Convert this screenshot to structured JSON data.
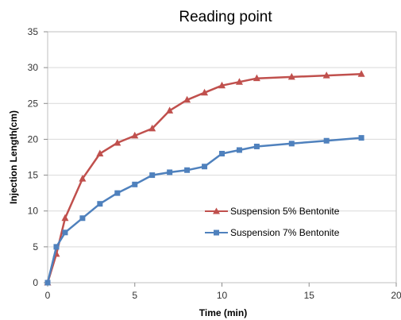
{
  "chart_data": {
    "type": "line",
    "title": "Reading point",
    "xlabel": "Time (min)",
    "ylabel": "Injection Length(cm)",
    "xlim": [
      0,
      20
    ],
    "ylim": [
      0,
      35
    ],
    "x_ticks": [
      0,
      5,
      10,
      15,
      20
    ],
    "y_ticks": [
      0,
      5,
      10,
      15,
      20,
      25,
      30,
      35
    ],
    "grid": true,
    "legend_position": "right-center",
    "series": [
      {
        "name": "Suspension 5% Bentonite",
        "color": "#c0504d",
        "marker": "triangle",
        "x": [
          0,
          0.5,
          1,
          2,
          3,
          4,
          5,
          6,
          7,
          8,
          9,
          10,
          11,
          12,
          14,
          16,
          18
        ],
        "y": [
          0,
          4,
          9,
          14.5,
          18,
          19.5,
          20.5,
          21.5,
          24,
          25.5,
          26.5,
          27.5,
          28,
          28.5,
          28.7,
          28.9,
          29.1
        ]
      },
      {
        "name": "Suspension 7% Bentonite",
        "color": "#4f81bd",
        "marker": "square",
        "x": [
          0,
          0.5,
          1,
          2,
          3,
          4,
          5,
          6,
          7,
          8,
          9,
          10,
          11,
          12,
          14,
          16,
          18
        ],
        "y": [
          0,
          5,
          7,
          9,
          11,
          12.5,
          13.7,
          15,
          15.4,
          15.7,
          16.2,
          18,
          18.5,
          19,
          19.4,
          19.8,
          20.2
        ]
      }
    ]
  }
}
